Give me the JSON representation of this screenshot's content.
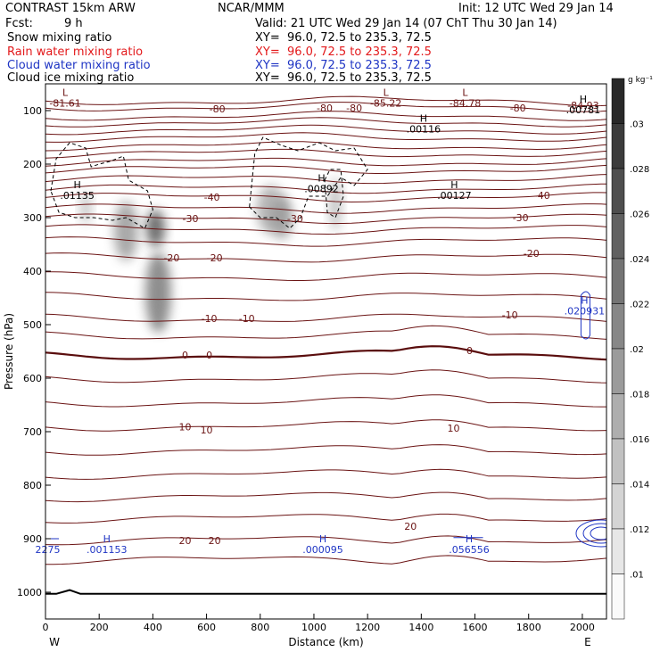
{
  "header": {
    "model": "CONTRAST 15km ARW",
    "agency": "NCAR/MMM",
    "init": "Init: 12 UTC Wed 29 Jan 14",
    "fcst_label": "Fcst:",
    "fcst_value": "9 h",
    "valid": "Valid: 21 UTC Wed 29 Jan 14 (07 ChT Thu 30 Jan 14)"
  },
  "fields": [
    {
      "name": "Snow mixing ratio",
      "xy": "XY=  96.0, 72.5 to 235.3, 72.5",
      "color": "#000000"
    },
    {
      "name": "Rain water mixing ratio",
      "xy": "XY=  96.0, 72.5 to 235.3, 72.5",
      "color": "#e31a1c"
    },
    {
      "name": "Cloud water mixing ratio",
      "xy": "XY=  96.0, 72.5 to 235.3, 72.5",
      "color": "#1f35c4"
    },
    {
      "name": "Cloud ice mixing ratio",
      "xy": "XY=  96.0, 72.5 to 235.3, 72.5",
      "color": "#000000"
    }
  ],
  "chart_data": {
    "type": "contour",
    "xlabel": "Distance (km)",
    "ylabel": "Pressure (hPa)",
    "x_ticks": [
      0,
      200,
      400,
      600,
      800,
      1000,
      1200,
      1400,
      1600,
      1800,
      2000
    ],
    "y_ticks": [
      100,
      200,
      300,
      400,
      500,
      600,
      700,
      800,
      900,
      1000
    ],
    "xlim": [
      0,
      2090
    ],
    "ylim": [
      50,
      1050
    ],
    "y_inverted": true,
    "left_endpoint_label": "W",
    "right_endpoint_label": "E",
    "colorbar": {
      "units": "g kg⁻¹",
      "ticks": [
        ".01",
        ".012",
        ".014",
        ".016",
        ".018",
        ".02",
        ".022",
        ".024",
        ".026",
        ".028",
        ".03"
      ]
    },
    "temperature_contour_labels": [
      {
        "x": 640,
        "p": 97,
        "text": "-80"
      },
      {
        "x": 1150,
        "p": 95,
        "text": "-80"
      },
      {
        "x": 1760,
        "p": 95,
        "text": "-80"
      },
      {
        "x": 1040,
        "p": 95,
        "text": "-80"
      },
      {
        "x": 620,
        "p": 262,
        "text": "-40"
      },
      {
        "x": 1850,
        "p": 258,
        "text": "-40"
      },
      {
        "x": 540,
        "p": 302,
        "text": "-30"
      },
      {
        "x": 930,
        "p": 302,
        "text": "-30"
      },
      {
        "x": 1770,
        "p": 300,
        "text": "-30"
      },
      {
        "x": 470,
        "p": 375,
        "text": "-20"
      },
      {
        "x": 630,
        "p": 375,
        "text": "-20"
      },
      {
        "x": 1810,
        "p": 367,
        "text": "-20"
      },
      {
        "x": 610,
        "p": 488,
        "text": "-10"
      },
      {
        "x": 750,
        "p": 488,
        "text": "-10"
      },
      {
        "x": 1730,
        "p": 482,
        "text": "-10"
      },
      {
        "x": 520,
        "p": 557,
        "text": "0"
      },
      {
        "x": 610,
        "p": 557,
        "text": "0"
      },
      {
        "x": 1580,
        "p": 548,
        "text": "0"
      },
      {
        "x": 520,
        "p": 691,
        "text": "10"
      },
      {
        "x": 600,
        "p": 697,
        "text": "10"
      },
      {
        "x": 1520,
        "p": 693,
        "text": "10"
      },
      {
        "x": 520,
        "p": 903,
        "text": "20"
      },
      {
        "x": 630,
        "p": 903,
        "text": "20"
      },
      {
        "x": 1360,
        "p": 877,
        "text": "20"
      }
    ],
    "extrema_labels": [
      {
        "x": 60,
        "p": 86,
        "kind": "L",
        "value": "-81.61",
        "color": "#6b1414"
      },
      {
        "x": 1255,
        "p": 86,
        "kind": "L",
        "value": "-85.22",
        "color": "#6b1414"
      },
      {
        "x": 1550,
        "p": 86,
        "kind": "L",
        "value": "-84.78",
        "color": "#6b1414"
      },
      {
        "x": 1990,
        "p": 90,
        "kind": "",
        "value": "-84.93",
        "color": "#6b1414"
      },
      {
        "x": 1990,
        "p": 98,
        "kind": "H",
        "value": ".00781",
        "color": "#000000"
      },
      {
        "x": 1395,
        "p": 134,
        "kind": "H",
        "value": ".00116",
        "color": "#000000"
      },
      {
        "x": 1015,
        "p": 246,
        "kind": "H",
        "value": ".00892",
        "color": "#000000"
      },
      {
        "x": 105,
        "p": 258,
        "kind": "H",
        "value": ".01135",
        "color": "#000000"
      },
      {
        "x": 1510,
        "p": 258,
        "kind": "H",
        "value": ".00127",
        "color": "#000000"
      },
      {
        "x": 1995,
        "p": 474,
        "kind": "H",
        "value": ".020931",
        "color": "#1f35c4"
      },
      {
        "x": -5,
        "p": 920,
        "kind": "",
        "value": "2275",
        "color": "#1f35c4"
      },
      {
        "x": 215,
        "p": 920,
        "kind": "H",
        "value": ".001153",
        "color": "#1f35c4"
      },
      {
        "x": 1020,
        "p": 920,
        "kind": "H",
        "value": ".000095",
        "color": "#1f35c4"
      },
      {
        "x": 1565,
        "p": 920,
        "kind": "H",
        "value": ".056556",
        "color": "#1f35c4"
      }
    ],
    "colors": {
      "temperature": "#6b1414",
      "freezing_line": "#5a0d0d",
      "snow": "#000000",
      "rain": "#e31a1c",
      "cloud_water": "#1f35c4",
      "cloud_ice": "#000000",
      "terrain": "#000000"
    }
  }
}
